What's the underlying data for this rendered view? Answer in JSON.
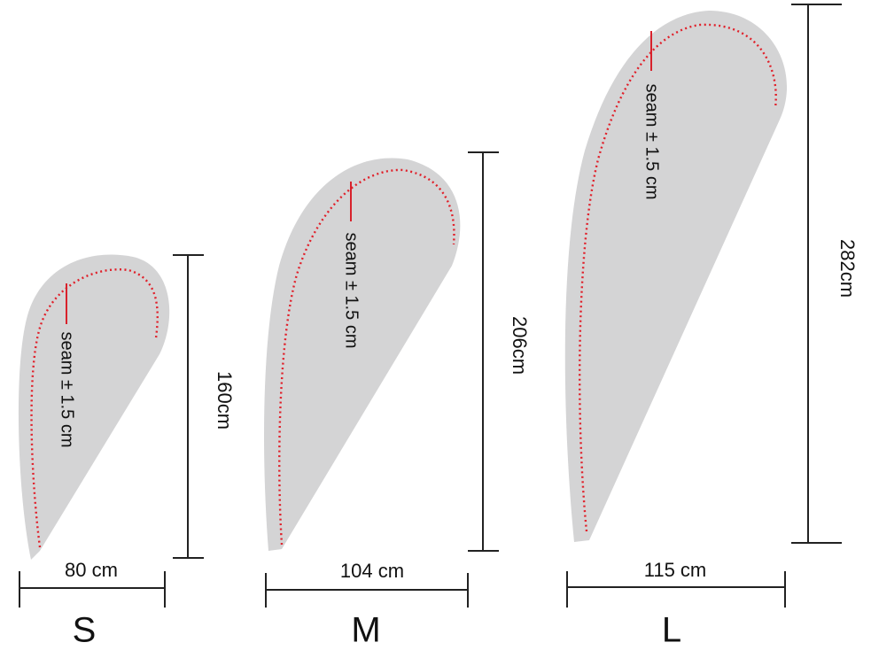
{
  "flags": [
    {
      "size": "S",
      "width": "80 cm",
      "height": "160cm",
      "seam": "seam ± 1.5 cm"
    },
    {
      "size": "M",
      "width": "104 cm",
      "height": "206cm",
      "seam": "seam ± 1.5 cm"
    },
    {
      "size": "L",
      "width": "115 cm",
      "height": "282cm",
      "seam": "seam ± 1.5 cm"
    }
  ]
}
